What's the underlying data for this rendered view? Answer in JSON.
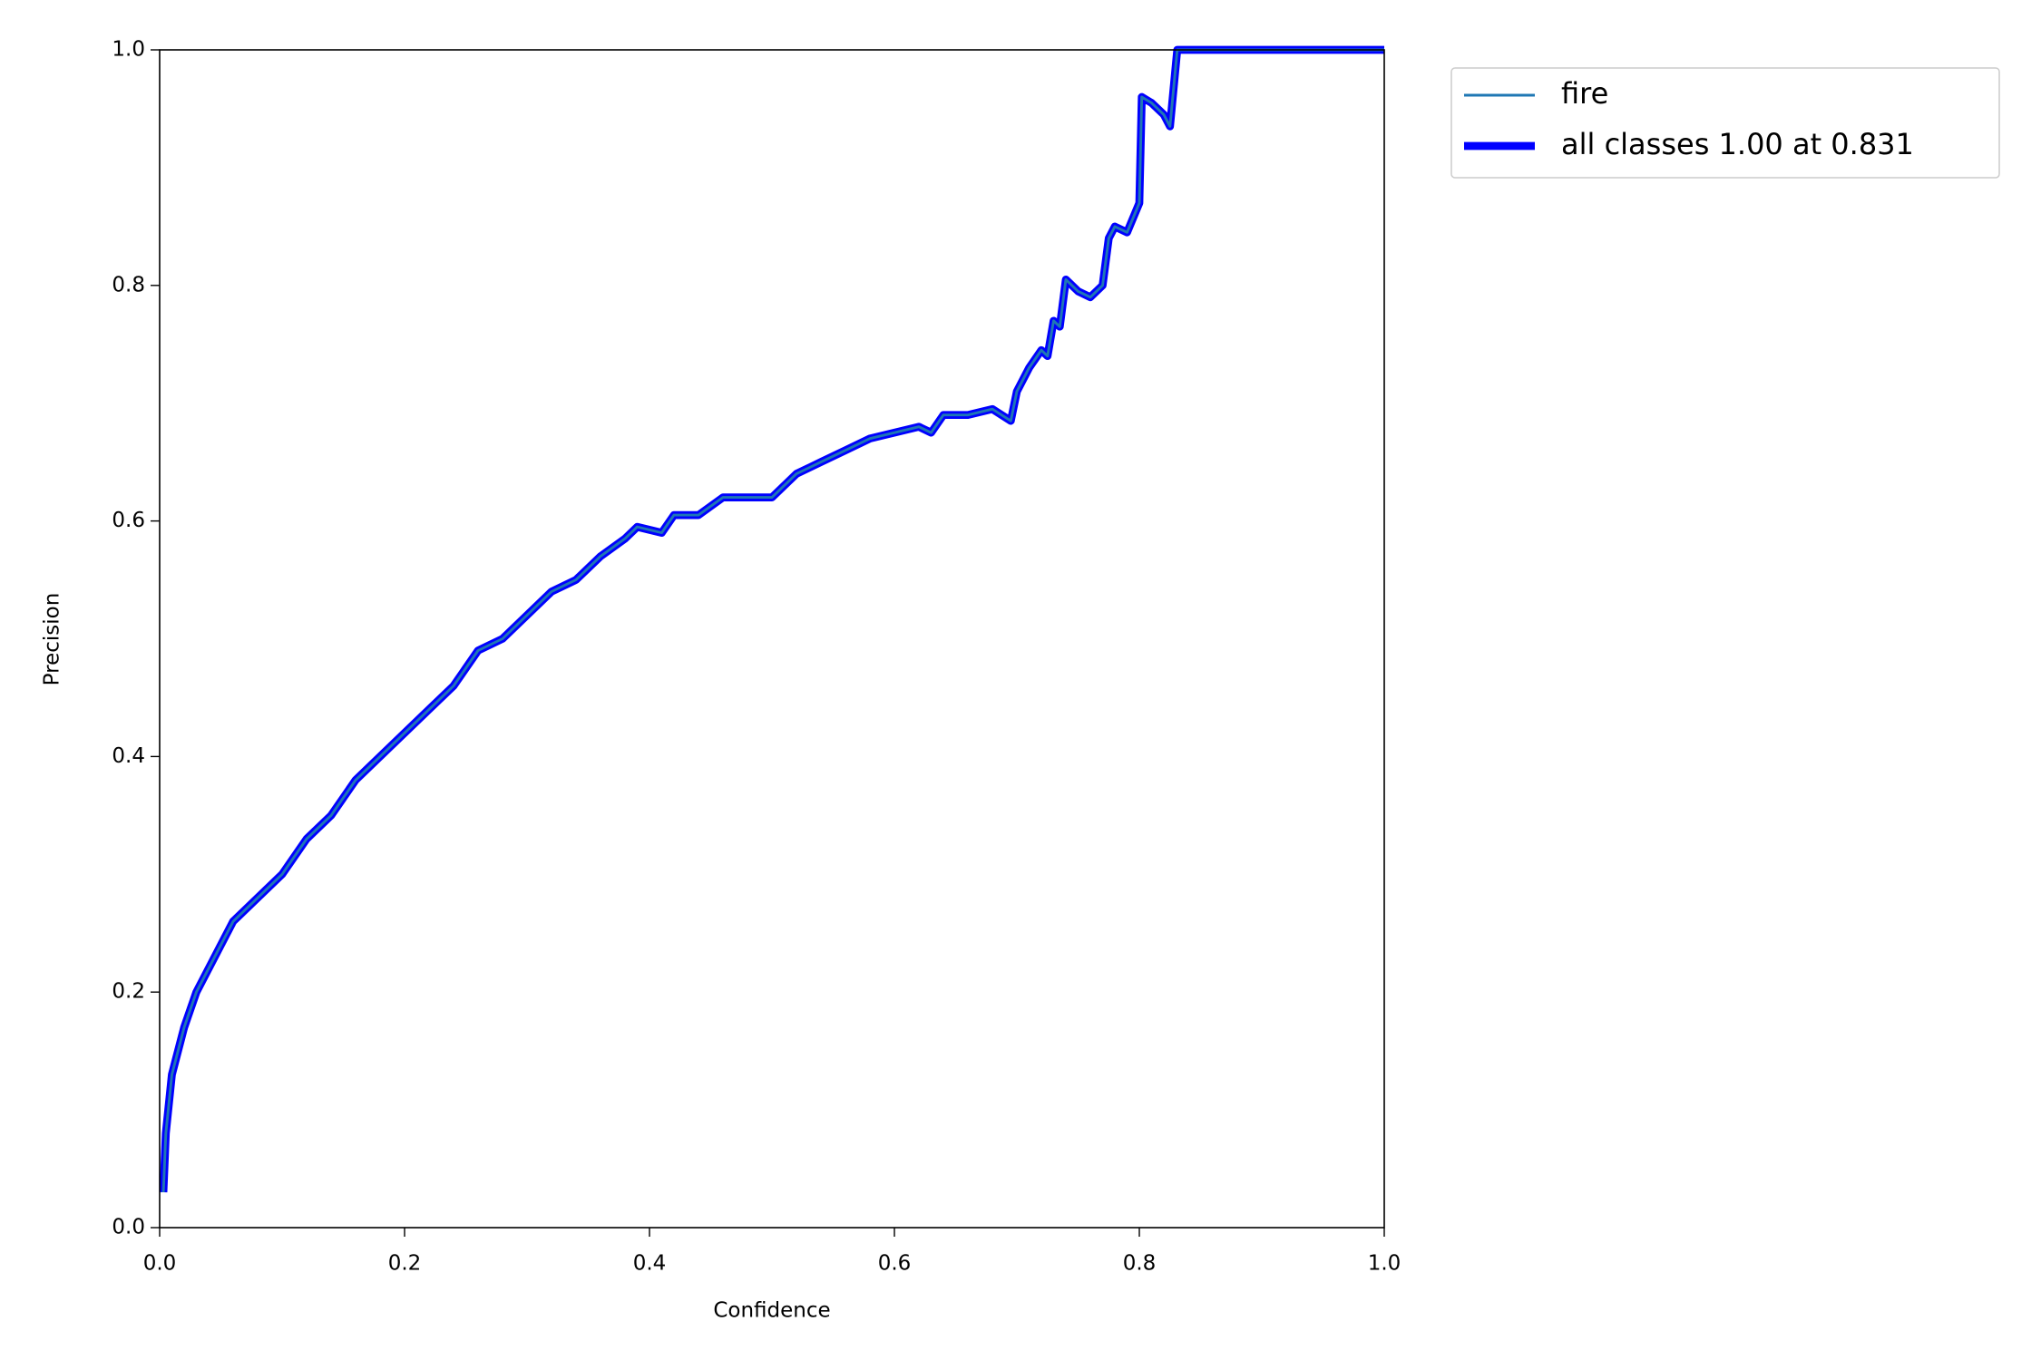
{
  "chart_data": {
    "type": "line",
    "xlabel": "Confidence",
    "ylabel": "Precision",
    "x": [
      0.003,
      0.005,
      0.01,
      0.02,
      0.03,
      0.04,
      0.05,
      0.06,
      0.08,
      0.1,
      0.12,
      0.14,
      0.16,
      0.18,
      0.2,
      0.22,
      0.24,
      0.26,
      0.28,
      0.3,
      0.32,
      0.34,
      0.36,
      0.38,
      0.39,
      0.41,
      0.42,
      0.44,
      0.46,
      0.48,
      0.5,
      0.52,
      0.54,
      0.56,
      0.58,
      0.6,
      0.62,
      0.63,
      0.64,
      0.66,
      0.68,
      0.695,
      0.7,
      0.71,
      0.72,
      0.725,
      0.73,
      0.735,
      0.74,
      0.75,
      0.76,
      0.77,
      0.775,
      0.78,
      0.79,
      0.8,
      0.802,
      0.81,
      0.82,
      0.825,
      0.831,
      1.0
    ],
    "series": [
      {
        "name": "fire",
        "color": "#1f77b4",
        "width": 1,
        "values": [
          0.03,
          0.08,
          0.13,
          0.17,
          0.2,
          0.22,
          0.24,
          0.26,
          0.28,
          0.3,
          0.33,
          0.35,
          0.38,
          0.4,
          0.42,
          0.44,
          0.46,
          0.49,
          0.5,
          0.52,
          0.54,
          0.55,
          0.57,
          0.585,
          0.595,
          0.59,
          0.605,
          0.605,
          0.62,
          0.62,
          0.62,
          0.64,
          0.65,
          0.66,
          0.67,
          0.675,
          0.68,
          0.675,
          0.69,
          0.69,
          0.695,
          0.685,
          0.71,
          0.73,
          0.745,
          0.74,
          0.77,
          0.765,
          0.805,
          0.795,
          0.79,
          0.8,
          0.84,
          0.85,
          0.845,
          0.87,
          0.96,
          0.955,
          0.945,
          0.935,
          1.0,
          1.0
        ]
      },
      {
        "name": "all classes 1.00 at 0.831",
        "color": "#0000ff",
        "width": 3,
        "values": [
          0.03,
          0.08,
          0.13,
          0.17,
          0.2,
          0.22,
          0.24,
          0.26,
          0.28,
          0.3,
          0.33,
          0.35,
          0.38,
          0.4,
          0.42,
          0.44,
          0.46,
          0.49,
          0.5,
          0.52,
          0.54,
          0.55,
          0.57,
          0.585,
          0.595,
          0.59,
          0.605,
          0.605,
          0.62,
          0.62,
          0.62,
          0.64,
          0.65,
          0.66,
          0.67,
          0.675,
          0.68,
          0.675,
          0.69,
          0.69,
          0.695,
          0.685,
          0.71,
          0.73,
          0.745,
          0.74,
          0.77,
          0.765,
          0.805,
          0.795,
          0.79,
          0.8,
          0.84,
          0.85,
          0.845,
          0.87,
          0.96,
          0.955,
          0.945,
          0.935,
          1.0,
          1.0
        ]
      }
    ],
    "xlim": [
      0,
      1
    ],
    "ylim": [
      0,
      1
    ],
    "xticks": [
      {
        "value": 0,
        "label": "0.0"
      },
      {
        "value": 0.2,
        "label": "0.2"
      },
      {
        "value": 0.4,
        "label": "0.4"
      },
      {
        "value": 0.6,
        "label": "0.6"
      },
      {
        "value": 0.8,
        "label": "0.8"
      },
      {
        "value": 1,
        "label": "1.0"
      }
    ],
    "yticks": [
      {
        "value": 0,
        "label": "0.0"
      },
      {
        "value": 0.2,
        "label": "0.2"
      },
      {
        "value": 0.4,
        "label": "0.4"
      },
      {
        "value": 0.6,
        "label": "0.6"
      },
      {
        "value": 0.8,
        "label": "0.8"
      },
      {
        "value": 1,
        "label": "1.0"
      }
    ],
    "legend": "outside-upper-right"
  }
}
